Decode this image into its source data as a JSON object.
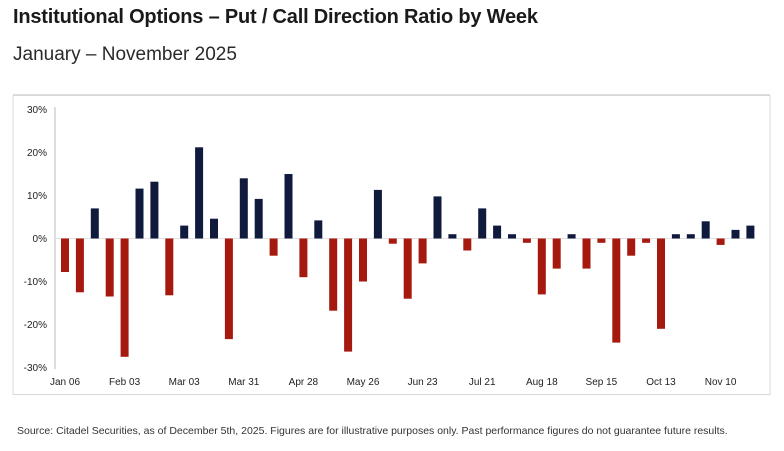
{
  "header": {
    "title": "Institutional Options – Put / Call Direction Ratio by Week",
    "subtitle": "January – November 2025"
  },
  "footer": {
    "source": "Source: Citadel Securities, as of December 5th, 2025. Figures are for illustrative purposes only. Past performance figures do not guarantee future results."
  },
  "colors": {
    "positive": "#0f1a3d",
    "negative": "#a5190f",
    "axis": "#bbbbbb",
    "border": "#cfcfcf"
  },
  "chart_data": {
    "type": "bar",
    "title": "Institutional Options – Put / Call Direction Ratio by Week",
    "subtitle": "January – November 2025",
    "xlabel": "",
    "ylabel": "",
    "ylim": [
      -30,
      30
    ],
    "yticks": [
      30,
      20,
      10,
      0,
      -10,
      -20,
      -30
    ],
    "ytick_labels": [
      "30%",
      "20%",
      "10%",
      "0%",
      "-10%",
      "-20%",
      "-30%"
    ],
    "xtick_labels": [
      "Jan 06",
      "Feb 03",
      "Mar 03",
      "Mar 31",
      "Apr 28",
      "May 26",
      "Jun 23",
      "Jul 21",
      "Aug 18",
      "Sep 15",
      "Oct 13",
      "Nov 10"
    ],
    "xtick_every": 4,
    "legend": "none",
    "grid": false,
    "values": [
      -7.8,
      -12.5,
      7.0,
      -13.5,
      -27.5,
      11.6,
      13.2,
      -13.2,
      3.0,
      21.2,
      4.6,
      -23.4,
      14.0,
      9.2,
      -4.0,
      15.0,
      -9.0,
      4.2,
      -16.8,
      -26.3,
      -10.0,
      11.3,
      -1.2,
      -14.0,
      -5.8,
      9.8,
      1.0,
      -2.8,
      7.0,
      3.0,
      1.0,
      -1.0,
      -13.0,
      -7.0,
      1.0,
      -7.0,
      -1.0,
      -24.2,
      -4.0,
      -1.0,
      -21.0,
      1.0,
      1.0,
      4.0,
      -1.5,
      2.0,
      3.0
    ]
  }
}
